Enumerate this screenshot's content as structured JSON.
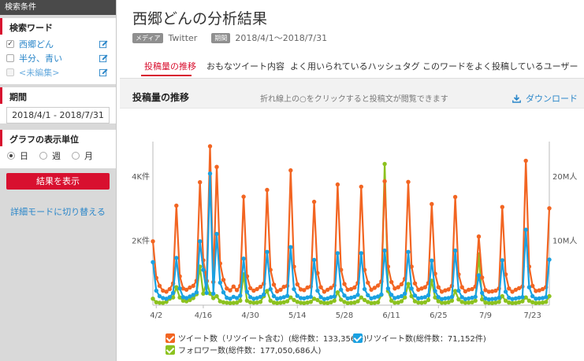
{
  "sidebar": {
    "header": "検索条件",
    "keyword_title": "検索ワード",
    "keywords": [
      {
        "label": "西郷どん",
        "checked": true
      },
      {
        "label": "半分、青い",
        "checked": false
      },
      {
        "label": "<未編集>",
        "checked": false
      }
    ],
    "period_title": "期間",
    "period_value": "2018/4/1 - 2018/7/31",
    "unit_title": "グラフの表示単位",
    "units": [
      {
        "label": "日",
        "selected": true
      },
      {
        "label": "週",
        "selected": false
      },
      {
        "label": "月",
        "selected": false
      }
    ],
    "submit_label": "結果を表示",
    "detail_link": "詳細モードに切り替える"
  },
  "main": {
    "title": "西郷どんの分析結果",
    "media_tag": "メディア",
    "media_value": "Twitter",
    "period_tag": "期間",
    "period_value": "2018/4/1～2018/7/31",
    "tabs": [
      {
        "label": "投稿量の推移",
        "active": true
      },
      {
        "label": "おもなツイート内容",
        "active": false
      },
      {
        "label": "よく用いられているハッシュタグ",
        "active": false
      },
      {
        "label": "このワードをよく投稿しているユーザー",
        "active": false
      }
    ],
    "panel_title": "投稿量の推移",
    "panel_hint": "折れ線上の○をクリックすると投稿文が閲覧できます",
    "download_label": "ダウンロード"
  },
  "chart_data": {
    "type": "line",
    "x_start": "2018/4/1",
    "x_end": "2018/7/31",
    "x_ticks": [
      "4/2",
      "4/16",
      "4/30",
      "5/14",
      "5/28",
      "6/11",
      "6/25",
      "7/9",
      "7/23"
    ],
    "y_left_ticks": [
      "2K件",
      "4K件"
    ],
    "y_right_ticks": [
      "10M人",
      "20M人"
    ],
    "y_left_range": [
      0,
      5000
    ],
    "y_right_range": [
      0,
      25000000
    ],
    "grid": false,
    "legend_position": "bottom",
    "series": [
      {
        "name": "ツイート数（リツイート含む）(総件数：133,356件)",
        "axis": "left",
        "color": "#f26522",
        "values": [
          1990,
          850,
          600,
          450,
          420,
          500,
          680,
          3100,
          900,
          520,
          480,
          550,
          600,
          760,
          3830,
          1400,
          760,
          4950,
          720,
          4310,
          1300,
          790,
          520,
          460,
          580,
          470,
          600,
          3380,
          900,
          530,
          450,
          500,
          570,
          670,
          3590,
          1100,
          640,
          430,
          480,
          570,
          600,
          4200,
          1200,
          650,
          490,
          470,
          550,
          580,
          3220,
          1000,
          560,
          420,
          480,
          540,
          620,
          3760,
          1100,
          660,
          480,
          500,
          550,
          690,
          3690,
          1100,
          700,
          480,
          540,
          610,
          740,
          3860,
          1200,
          720,
          520,
          560,
          650,
          820,
          3840,
          1200,
          680,
          480,
          520,
          560,
          690,
          3150,
          980,
          560,
          420,
          460,
          490,
          600,
          3370,
          960,
          560,
          430,
          480,
          500,
          580,
          2140,
          860,
          470,
          420,
          430,
          450,
          520,
          3060,
          960,
          520,
          420,
          480,
          530,
          580,
          4500,
          1200,
          600,
          440,
          460,
          500,
          560,
          3020
        ]
      },
      {
        "name": "リツイート数(総件数：71,152件)",
        "axis": "left",
        "color": "#1aa1e1",
        "values": [
          1340,
          450,
          280,
          220,
          200,
          250,
          380,
          1470,
          520,
          250,
          220,
          270,
          320,
          400,
          1990,
          1100,
          380,
          4100,
          360,
          2220,
          700,
          400,
          230,
          200,
          260,
          220,
          300,
          1450,
          420,
          250,
          200,
          220,
          260,
          330,
          1660,
          500,
          280,
          200,
          220,
          250,
          290,
          1810,
          500,
          290,
          220,
          210,
          240,
          260,
          1410,
          450,
          250,
          190,
          210,
          250,
          270,
          1620,
          480,
          300,
          210,
          230,
          260,
          320,
          1620,
          500,
          310,
          210,
          240,
          270,
          330,
          1700,
          520,
          320,
          220,
          250,
          280,
          360,
          1660,
          520,
          300,
          210,
          230,
          250,
          310,
          1390,
          440,
          250,
          190,
          210,
          220,
          260,
          1700,
          450,
          250,
          190,
          210,
          230,
          260,
          930,
          380,
          210,
          180,
          190,
          200,
          230,
          1400,
          420,
          230,
          190,
          210,
          230,
          250,
          2350,
          560,
          280,
          200,
          210,
          220,
          250,
          1420
        ]
      },
      {
        "name": "フォロワー数(総件数：177,050,686人)",
        "axis": "right",
        "color": "#8cc21f",
        "values": [
          1000000,
          450000,
          380000,
          350000,
          520000,
          1000000,
          1200000,
          2800000,
          1200000,
          700000,
          600000,
          800000,
          1100000,
          1700000,
          6000000,
          1800000,
          3700000,
          1800000,
          1100000,
          1400000,
          600000,
          450000,
          380000,
          330000,
          350000,
          400000,
          700000,
          4800000,
          700000,
          450000,
          380000,
          400000,
          520000,
          1400000,
          2200000,
          700000,
          400000,
          330000,
          380000,
          450000,
          600000,
          1200000,
          800000,
          520000,
          380000,
          330000,
          400000,
          520000,
          1000000,
          800000,
          450000,
          350000,
          330000,
          450000,
          700000,
          2000000,
          850000,
          500000,
          330000,
          350000,
          400000,
          600000,
          1200000,
          800000,
          500000,
          330000,
          350000,
          450000,
          1600000,
          22000000,
          2200000,
          700000,
          380000,
          400000,
          600000,
          1200000,
          3300000,
          1400000,
          600000,
          400000,
          380000,
          450000,
          800000,
          3800000,
          1200000,
          600000,
          380000,
          380000,
          450000,
          700000,
          2200000,
          900000,
          500000,
          380000,
          400000,
          450000,
          700000,
          7900000,
          900000,
          400000,
          350000,
          330000,
          400000,
          500000,
          1400000,
          700000,
          400000,
          330000,
          350000,
          450000,
          600000,
          1200000,
          700000,
          450000,
          330000,
          350000,
          400000,
          500000,
          1400000
        ]
      }
    ]
  },
  "colors": {
    "accent": "#d8102f",
    "link": "#2a86c9",
    "tweet": "#f26522",
    "retweet": "#1aa1e1",
    "follower": "#8cc21f"
  },
  "icons": {
    "edit": "edit-icon",
    "download": "download-icon"
  }
}
